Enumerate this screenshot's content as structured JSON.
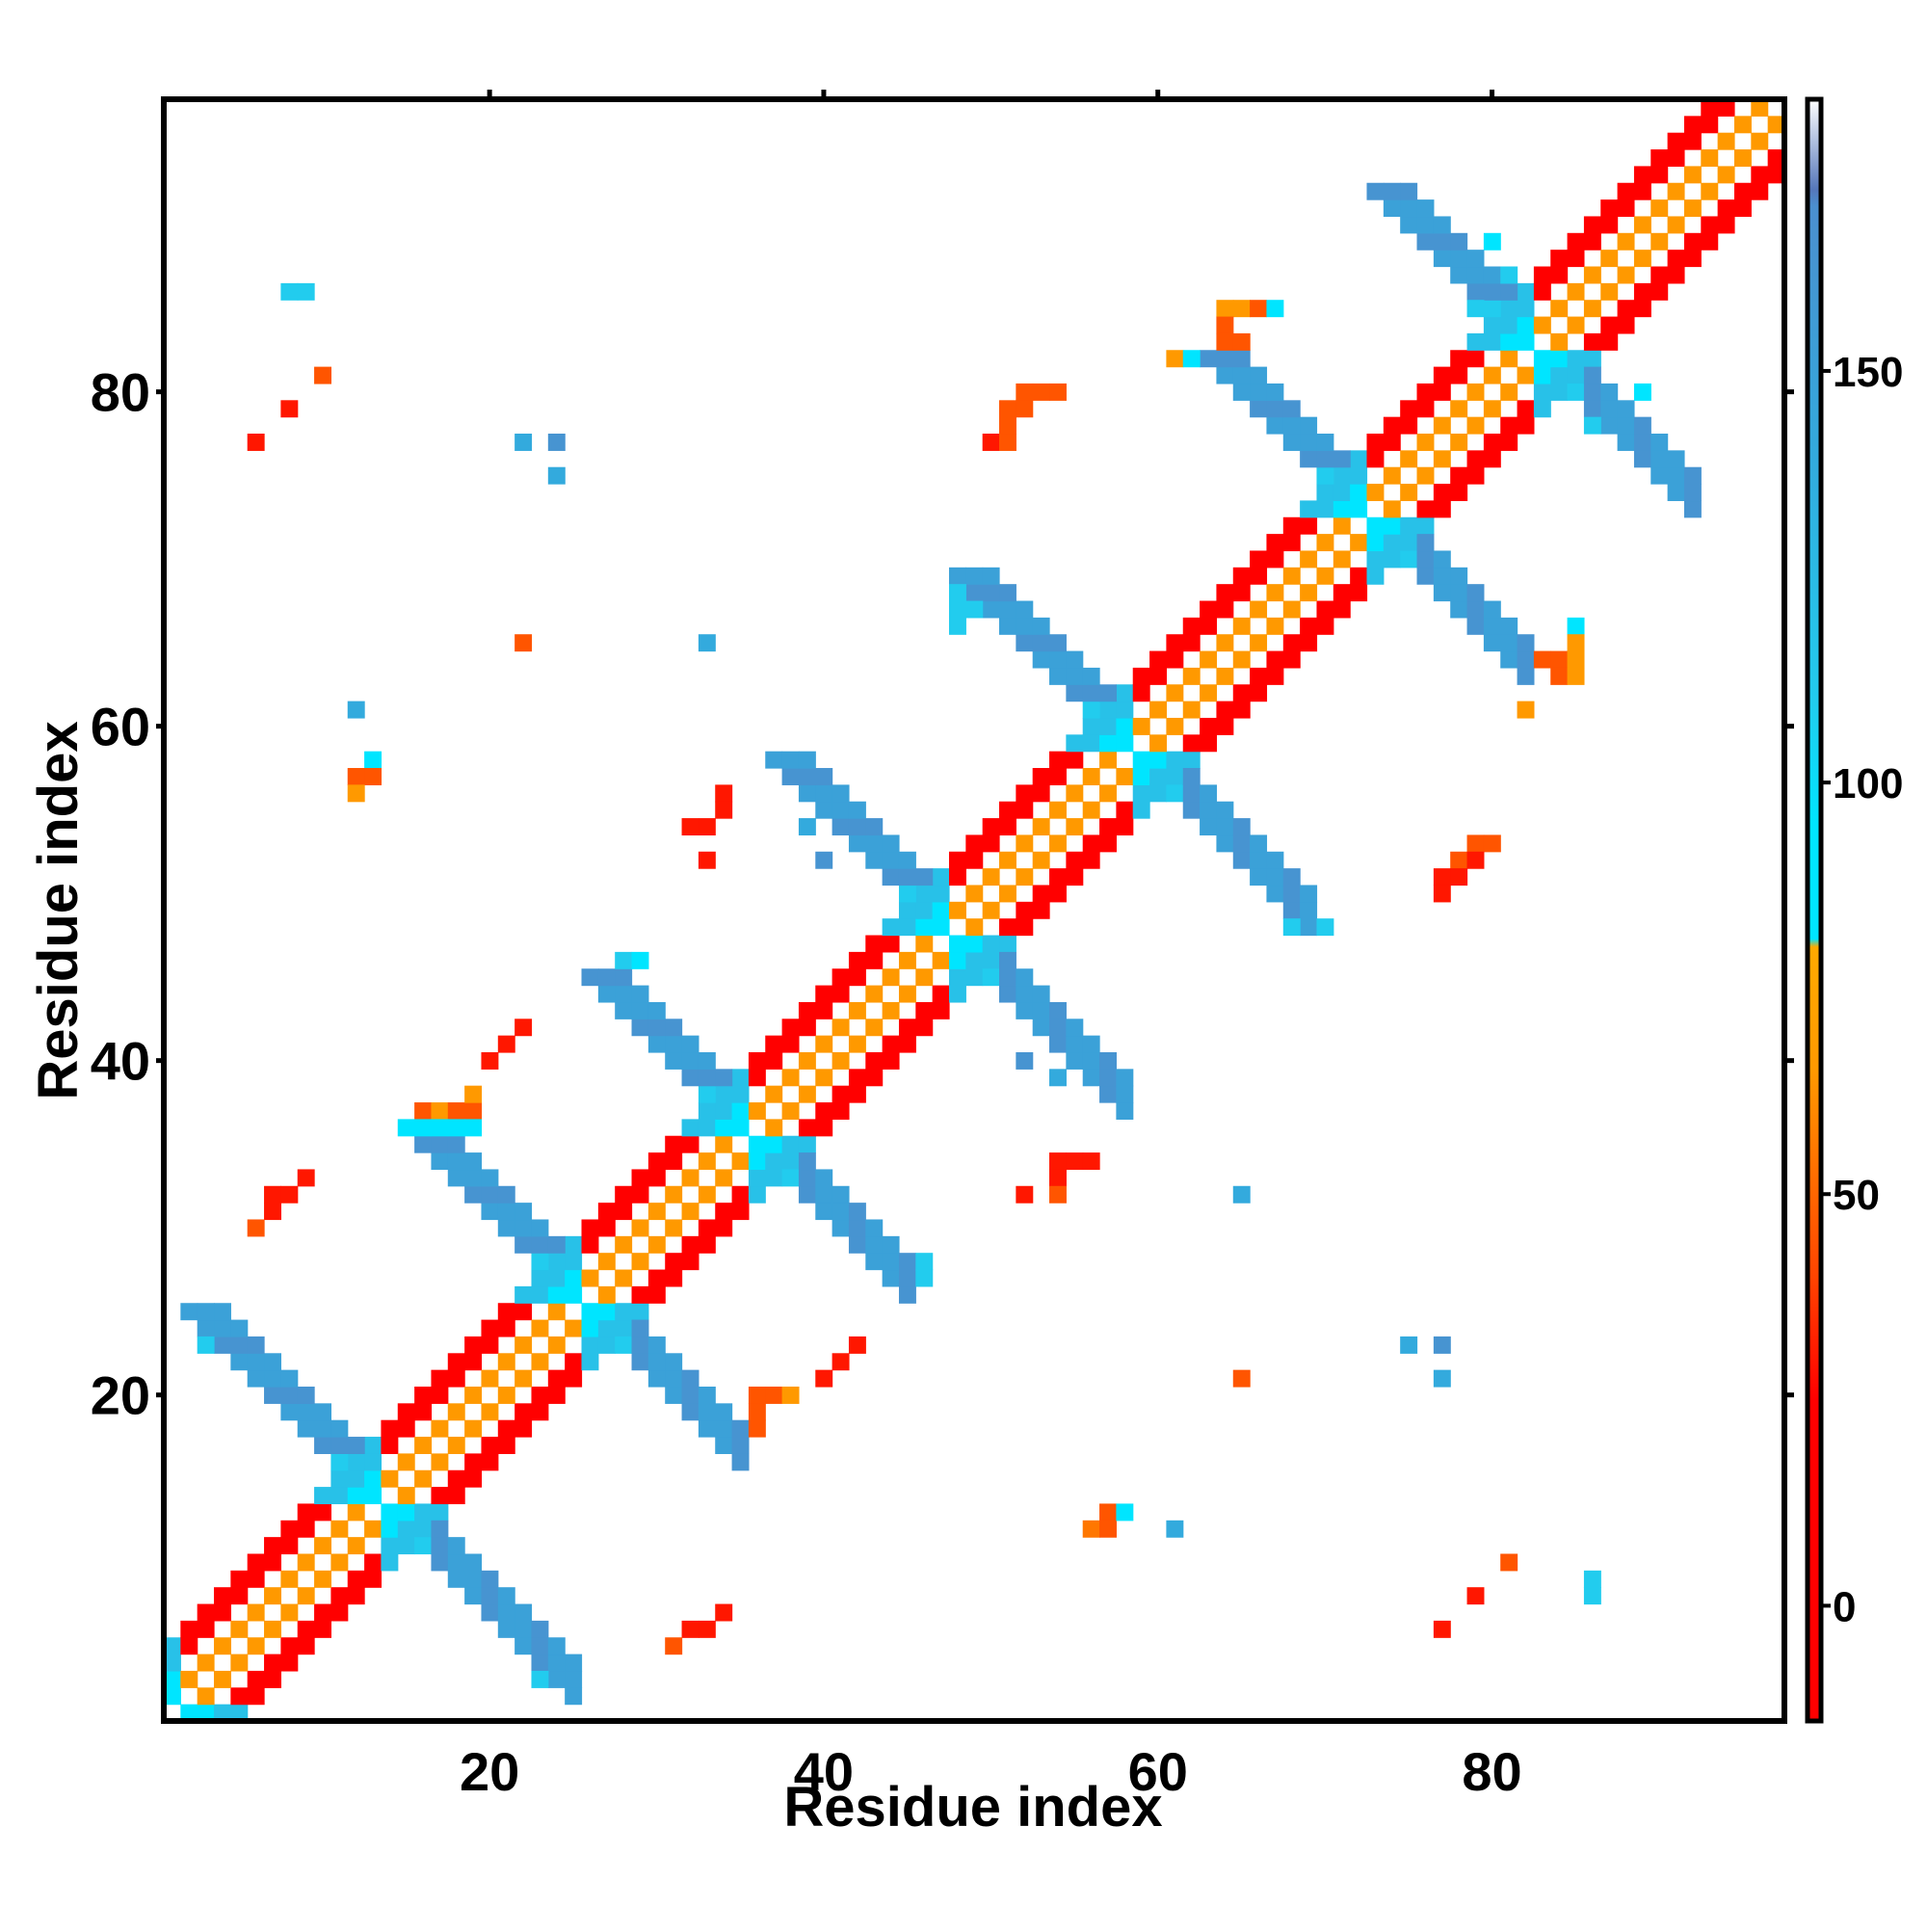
{
  "chart_data": {
    "type": "heatmap",
    "title": "",
    "xlabel": "Residue index",
    "ylabel": "Residue index",
    "xlim": [
      0.5,
      97.5
    ],
    "ylim": [
      0.5,
      97.5
    ],
    "xticks": [
      20,
      40,
      60,
      80
    ],
    "yticks": [
      20,
      40,
      60,
      80
    ],
    "grid": false,
    "colorbar": {
      "range": [
        -14,
        183
      ],
      "ticks": [
        0,
        50,
        100,
        150
      ],
      "stops": [
        {
          "value": -14,
          "color": "#ff0000"
        },
        {
          "value": 25,
          "color": "#ff0000"
        },
        {
          "value": 40,
          "color": "#ff4400"
        },
        {
          "value": 55,
          "color": "#ff7700"
        },
        {
          "value": 65,
          "color": "#ff9900"
        },
        {
          "value": 80,
          "color": "#ffaa00"
        },
        {
          "value": 81,
          "color": "#00e5ff"
        },
        {
          "value": 95,
          "color": "#00e5ff"
        },
        {
          "value": 110,
          "color": "#22ccee"
        },
        {
          "value": 140,
          "color": "#33aadd"
        },
        {
          "value": 170,
          "color": "#4b8fcf"
        },
        {
          "value": 172,
          "color": "#5577bb"
        },
        {
          "value": 183,
          "color": "#ffffff"
        }
      ]
    },
    "cell_colors": {
      "red": "#ff0000",
      "red_orange": "#ff3300",
      "orange": "#ff6600",
      "amber": "#ff9900",
      "cyan": "#00eeff",
      "light_cyan": "#22d0ea",
      "steel": "#4b8fcf",
      "deep": "#5577bb"
    },
    "helix_runs": [
      [
        2,
        13
      ],
      [
        14,
        25
      ],
      [
        26,
        35
      ],
      [
        36,
        47
      ],
      [
        48,
        58
      ],
      [
        59,
        72
      ],
      [
        73,
        82
      ],
      [
        83,
        97
      ]
    ],
    "diag_cells_note": "",
    "cells": [
      {
        "x": 22,
        "y": 77,
        "v": 140
      },
      {
        "x": 24,
        "y": 77,
        "v": 165
      },
      {
        "x": 24,
        "y": 75,
        "v": 140
      },
      {
        "x": 8,
        "y": 86,
        "v": 110
      },
      {
        "x": 9,
        "y": 86,
        "v": 110
      },
      {
        "x": 10,
        "y": 81,
        "v": 45
      },
      {
        "x": 8,
        "y": 79,
        "v": 30
      },
      {
        "x": 6,
        "y": 77,
        "v": 30
      },
      {
        "x": 12,
        "y": 61,
        "v": 140
      },
      {
        "x": 13,
        "y": 58,
        "v": 90
      },
      {
        "x": 12,
        "y": 57,
        "v": 45
      },
      {
        "x": 13,
        "y": 57,
        "v": 45
      },
      {
        "x": 12,
        "y": 56,
        "v": 65
      },
      {
        "x": 22,
        "y": 65,
        "v": 45
      },
      {
        "x": 33,
        "y": 65,
        "v": 140
      },
      {
        "x": 34,
        "y": 56,
        "v": 30
      },
      {
        "x": 34,
        "y": 55,
        "v": 30
      },
      {
        "x": 33,
        "y": 54,
        "v": 30
      },
      {
        "x": 32,
        "y": 54,
        "v": 30
      },
      {
        "x": 33,
        "y": 52,
        "v": 30
      },
      {
        "x": 39,
        "y": 54,
        "v": 140
      },
      {
        "x": 40,
        "y": 52,
        "v": 165
      },
      {
        "x": 22,
        "y": 42,
        "v": 30
      },
      {
        "x": 21,
        "y": 41,
        "v": 30
      },
      {
        "x": 20,
        "y": 40,
        "v": 30
      },
      {
        "x": 9,
        "y": 33,
        "v": 30
      },
      {
        "x": 8,
        "y": 32,
        "v": 30
      },
      {
        "x": 7,
        "y": 32,
        "v": 30
      },
      {
        "x": 7,
        "y": 31,
        "v": 30
      },
      {
        "x": 6,
        "y": 30,
        "v": 45
      },
      {
        "x": 52,
        "y": 40,
        "v": 165
      },
      {
        "x": 54,
        "y": 39,
        "v": 140
      },
      {
        "x": 54,
        "y": 34,
        "v": 30
      },
      {
        "x": 55,
        "y": 34,
        "v": 30
      },
      {
        "x": 56,
        "y": 34,
        "v": 30
      },
      {
        "x": 54,
        "y": 33,
        "v": 30
      },
      {
        "x": 52,
        "y": 32,
        "v": 30
      },
      {
        "x": 54,
        "y": 32,
        "v": 45
      },
      {
        "x": 65,
        "y": 32,
        "v": 140
      },
      {
        "x": 42,
        "y": 23,
        "v": 30
      },
      {
        "x": 41,
        "y": 22,
        "v": 30
      },
      {
        "x": 40,
        "y": 21,
        "v": 30
      },
      {
        "x": 65,
        "y": 21,
        "v": 45
      },
      {
        "x": 75,
        "y": 23,
        "v": 140
      },
      {
        "x": 77,
        "y": 23,
        "v": 165
      },
      {
        "x": 77,
        "y": 21,
        "v": 140
      },
      {
        "x": 57,
        "y": 13,
        "v": 45
      },
      {
        "x": 56,
        "y": 12,
        "v": 55
      },
      {
        "x": 57,
        "y": 12,
        "v": 45
      },
      {
        "x": 58,
        "y": 13,
        "v": 90
      },
      {
        "x": 61,
        "y": 12,
        "v": 140
      },
      {
        "x": 34,
        "y": 7,
        "v": 30
      },
      {
        "x": 33,
        "y": 6,
        "v": 30
      },
      {
        "x": 32,
        "y": 6,
        "v": 30
      },
      {
        "x": 31,
        "y": 5,
        "v": 45
      },
      {
        "x": 81,
        "y": 10,
        "v": 45
      },
      {
        "x": 79,
        "y": 8,
        "v": 30
      },
      {
        "x": 77,
        "y": 6,
        "v": 30
      },
      {
        "x": 86,
        "y": 9,
        "v": 110
      },
      {
        "x": 86,
        "y": 8,
        "v": 110
      },
      {
        "x": 79,
        "y": 53,
        "v": 45
      },
      {
        "x": 80,
        "y": 53,
        "v": 45
      },
      {
        "x": 78,
        "y": 52,
        "v": 45
      },
      {
        "x": 79,
        "y": 52,
        "v": 30
      },
      {
        "x": 77,
        "y": 51,
        "v": 30
      },
      {
        "x": 78,
        "y": 51,
        "v": 30
      },
      {
        "x": 77,
        "y": 50,
        "v": 30
      },
      {
        "x": 52,
        "y": 80,
        "v": 45
      },
      {
        "x": 53,
        "y": 80,
        "v": 45
      },
      {
        "x": 54,
        "y": 80,
        "v": 45
      },
      {
        "x": 51,
        "y": 79,
        "v": 45
      },
      {
        "x": 52,
        "y": 79,
        "v": 45
      },
      {
        "x": 51,
        "y": 78,
        "v": 45
      },
      {
        "x": 50,
        "y": 77,
        "v": 30
      },
      {
        "x": 51,
        "y": 77,
        "v": 45
      },
      {
        "x": 64,
        "y": 85,
        "v": 65
      },
      {
        "x": 65,
        "y": 85,
        "v": 65
      },
      {
        "x": 66,
        "y": 85,
        "v": 45
      },
      {
        "x": 67,
        "y": 85,
        "v": 90
      },
      {
        "x": 64,
        "y": 84,
        "v": 45
      },
      {
        "x": 64,
        "y": 83,
        "v": 45
      },
      {
        "x": 65,
        "y": 83,
        "v": 45
      },
      {
        "x": 61,
        "y": 82,
        "v": 65
      },
      {
        "x": 62,
        "y": 82,
        "v": 90
      },
      {
        "x": 63,
        "y": 82,
        "v": 90
      },
      {
        "x": 64,
        "y": 82,
        "v": 90
      },
      {
        "x": 65,
        "y": 82,
        "v": 90
      },
      {
        "x": 80,
        "y": 89,
        "v": 90
      },
      {
        "x": 89,
        "y": 80,
        "v": 90
      },
      {
        "x": 85,
        "y": 66,
        "v": 90
      },
      {
        "x": 85,
        "y": 65,
        "v": 65
      },
      {
        "x": 83,
        "y": 64,
        "v": 45
      },
      {
        "x": 84,
        "y": 64,
        "v": 45
      },
      {
        "x": 85,
        "y": 64,
        "v": 65
      },
      {
        "x": 84,
        "y": 63,
        "v": 45
      },
      {
        "x": 85,
        "y": 63,
        "v": 65
      },
      {
        "x": 82,
        "y": 61,
        "v": 65
      },
      {
        "x": 16,
        "y": 37,
        "v": 45
      },
      {
        "x": 17,
        "y": 37,
        "v": 65
      },
      {
        "x": 18,
        "y": 37,
        "v": 45
      },
      {
        "x": 19,
        "y": 37,
        "v": 45
      },
      {
        "x": 19,
        "y": 38,
        "v": 65
      },
      {
        "x": 18,
        "y": 36,
        "v": 90
      },
      {
        "x": 19,
        "y": 36,
        "v": 90
      },
      {
        "x": 15,
        "y": 36,
        "v": 90
      },
      {
        "x": 16,
        "y": 36,
        "v": 90
      },
      {
        "x": 17,
        "y": 36,
        "v": 90
      },
      {
        "x": 36,
        "y": 20,
        "v": 45
      },
      {
        "x": 37,
        "y": 20,
        "v": 45
      },
      {
        "x": 38,
        "y": 20,
        "v": 65
      },
      {
        "x": 36,
        "y": 19,
        "v": 45
      },
      {
        "x": 36,
        "y": 18,
        "v": 45
      },
      {
        "x": 48,
        "y": 68,
        "v": 110
      },
      {
        "x": 49,
        "y": 68,
        "v": 110
      },
      {
        "x": 48,
        "y": 67,
        "v": 110
      },
      {
        "x": 49,
        "y": 67,
        "v": 110
      },
      {
        "x": 48,
        "y": 66,
        "v": 110
      },
      {
        "x": 28,
        "y": 46,
        "v": 110
      },
      {
        "x": 29,
        "y": 46,
        "v": 90
      },
      {
        "x": 68,
        "y": 48,
        "v": 110
      },
      {
        "x": 69,
        "y": 48,
        "v": 110
      },
      {
        "x": 70,
        "y": 48,
        "v": 110
      },
      {
        "x": 68,
        "y": 49,
        "v": 110
      },
      {
        "x": 69,
        "y": 49,
        "v": 110
      },
      {
        "x": 44,
        "y": 28,
        "v": 110
      },
      {
        "x": 45,
        "y": 28,
        "v": 110
      },
      {
        "x": 46,
        "y": 28,
        "v": 110
      },
      {
        "x": 45,
        "y": 27,
        "v": 110
      },
      {
        "x": 44,
        "y": 27,
        "v": 110
      },
      {
        "x": 46,
        "y": 27,
        "v": 110
      },
      {
        "x": 3,
        "y": 25,
        "v": 110
      },
      {
        "x": 4,
        "y": 25,
        "v": 110
      },
      {
        "x": 3,
        "y": 24,
        "v": 110
      },
      {
        "x": 3,
        "y": 23,
        "v": 110
      },
      {
        "x": 4,
        "y": 24,
        "v": 110
      },
      {
        "x": 23,
        "y": 3,
        "v": 110
      },
      {
        "x": 24,
        "y": 3,
        "v": 110
      },
      {
        "x": 25,
        "y": 3,
        "v": 110
      },
      {
        "x": 24,
        "y": 4,
        "v": 110
      },
      {
        "x": 25,
        "y": 4,
        "v": 110
      },
      {
        "x": 86,
        "y": 78,
        "v": 110
      },
      {
        "x": 87,
        "y": 78,
        "v": 110
      },
      {
        "x": 87,
        "y": 79,
        "v": 110
      },
      {
        "x": 87,
        "y": 80,
        "v": 110
      },
      {
        "x": 80,
        "y": 87,
        "v": 110
      },
      {
        "x": 81,
        "y": 87,
        "v": 110
      },
      {
        "x": 79,
        "y": 87,
        "v": 110
      },
      {
        "x": 79,
        "y": 86,
        "v": 110
      },
      {
        "x": 79,
        "y": 85,
        "v": 110
      }
    ]
  }
}
